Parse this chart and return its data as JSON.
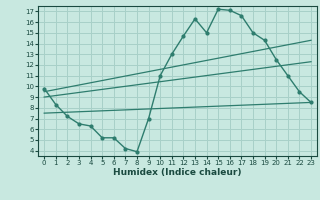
{
  "xlabel": "Humidex (Indice chaleur)",
  "bg_color": "#c8e8e0",
  "line_color": "#2e7d6e",
  "grid_color": "#a8d0c8",
  "xlim": [
    -0.5,
    23.5
  ],
  "ylim": [
    3.5,
    17.5
  ],
  "xticks": [
    0,
    1,
    2,
    3,
    4,
    5,
    6,
    7,
    8,
    9,
    10,
    11,
    12,
    13,
    14,
    15,
    16,
    17,
    18,
    19,
    20,
    21,
    22,
    23
  ],
  "yticks": [
    4,
    5,
    6,
    7,
    8,
    9,
    10,
    11,
    12,
    13,
    14,
    15,
    16,
    17
  ],
  "humidex_x": [
    0,
    1,
    2,
    3,
    4,
    5,
    6,
    7,
    8,
    9,
    10,
    11,
    12,
    13,
    14,
    15,
    16,
    17,
    18,
    19,
    20,
    21,
    22,
    23
  ],
  "humidex_y": [
    9.8,
    8.3,
    7.2,
    6.5,
    6.3,
    5.2,
    5.2,
    4.2,
    3.9,
    7.0,
    11.0,
    13.0,
    14.7,
    16.3,
    15.0,
    17.2,
    17.1,
    16.6,
    15.0,
    14.3,
    12.5,
    11.0,
    9.5,
    8.5
  ],
  "line2_x": [
    0,
    23
  ],
  "line2_y": [
    9.5,
    14.3
  ],
  "line3_x": [
    0,
    23
  ],
  "line3_y": [
    9.0,
    12.3
  ],
  "line4_x": [
    0,
    23
  ],
  "line4_y": [
    7.5,
    8.5
  ],
  "tick_fontsize": 5.0,
  "xlabel_fontsize": 6.5,
  "tick_color": "#1a4a40"
}
